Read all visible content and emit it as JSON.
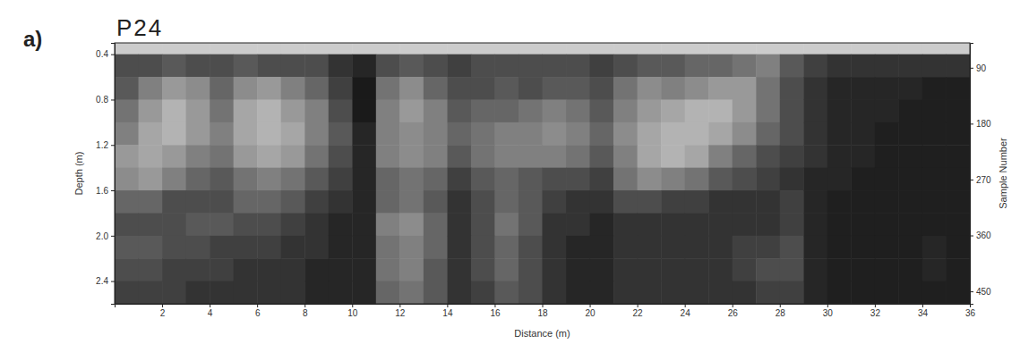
{
  "chart_data": {
    "type": "heatmap",
    "panel_label": "a)",
    "title": "P24",
    "x_label": "Distance (m)",
    "y_label": "Depth (m)",
    "y2_label": "Sample Number",
    "xlim": [
      0,
      36
    ],
    "xticks": [
      2,
      4,
      6,
      8,
      10,
      12,
      14,
      16,
      18,
      20,
      22,
      24,
      26,
      28,
      30,
      32,
      34,
      36
    ],
    "ylim": [
      0.3,
      2.6
    ],
    "yticks": [
      0.4,
      0.8,
      1.2,
      1.6,
      {
        "value": 2.0,
        "label": "2.0"
      },
      2.4
    ],
    "y2lim": [
      50,
      470
    ],
    "y2ticks": [
      90,
      180,
      270,
      360,
      450
    ],
    "x_edges": [
      0,
      1,
      2,
      3,
      4,
      5,
      6,
      7,
      8,
      9,
      10,
      11,
      12,
      13,
      14,
      15,
      16,
      17,
      18,
      19,
      20,
      21,
      22,
      23,
      24,
      25,
      26,
      27,
      28,
      29,
      30,
      31,
      32,
      33,
      34,
      35,
      36
    ],
    "y_edges": [
      0.3,
      0.4,
      0.6,
      0.8,
      1.0,
      1.2,
      1.4,
      1.6,
      1.8,
      2.0,
      2.2,
      2.4,
      2.6
    ],
    "cells": [
      [
        0.8,
        0.8,
        0.8,
        0.8,
        0.8,
        0.8,
        0.8,
        0.8,
        0.8,
        0.8,
        0.8,
        0.8,
        0.8,
        0.8,
        0.8,
        0.8,
        0.8,
        0.8,
        0.8,
        0.8,
        0.8,
        0.8,
        0.8,
        0.8,
        0.8,
        0.8,
        0.8,
        0.8,
        0.8,
        0.8,
        0.8,
        0.8,
        0.8,
        0.8,
        0.8,
        0.8
      ],
      [
        0.3,
        0.3,
        0.35,
        0.3,
        0.3,
        0.35,
        0.3,
        0.3,
        0.3,
        0.2,
        0.15,
        0.3,
        0.35,
        0.3,
        0.25,
        0.3,
        0.3,
        0.3,
        0.3,
        0.3,
        0.25,
        0.3,
        0.35,
        0.35,
        0.4,
        0.4,
        0.45,
        0.5,
        0.35,
        0.25,
        0.2,
        0.2,
        0.2,
        0.2,
        0.2,
        0.2
      ],
      [
        0.35,
        0.5,
        0.6,
        0.55,
        0.4,
        0.55,
        0.6,
        0.5,
        0.4,
        0.25,
        0.1,
        0.45,
        0.55,
        0.4,
        0.3,
        0.3,
        0.35,
        0.3,
        0.35,
        0.35,
        0.3,
        0.45,
        0.55,
        0.5,
        0.55,
        0.6,
        0.6,
        0.45,
        0.3,
        0.2,
        0.15,
        0.15,
        0.15,
        0.15,
        0.12,
        0.12
      ],
      [
        0.45,
        0.6,
        0.7,
        0.6,
        0.45,
        0.65,
        0.7,
        0.6,
        0.5,
        0.3,
        0.1,
        0.5,
        0.6,
        0.5,
        0.35,
        0.4,
        0.4,
        0.45,
        0.5,
        0.45,
        0.35,
        0.5,
        0.6,
        0.65,
        0.7,
        0.7,
        0.6,
        0.45,
        0.3,
        0.2,
        0.15,
        0.15,
        0.15,
        0.12,
        0.12,
        0.12
      ],
      [
        0.5,
        0.65,
        0.7,
        0.6,
        0.5,
        0.65,
        0.7,
        0.65,
        0.5,
        0.35,
        0.15,
        0.5,
        0.55,
        0.5,
        0.4,
        0.45,
        0.5,
        0.5,
        0.55,
        0.5,
        0.4,
        0.55,
        0.65,
        0.7,
        0.7,
        0.65,
        0.55,
        0.4,
        0.3,
        0.2,
        0.15,
        0.15,
        0.12,
        0.12,
        0.12,
        0.12
      ],
      [
        0.6,
        0.65,
        0.6,
        0.5,
        0.45,
        0.6,
        0.65,
        0.6,
        0.45,
        0.3,
        0.15,
        0.5,
        0.55,
        0.5,
        0.35,
        0.45,
        0.5,
        0.5,
        0.5,
        0.45,
        0.35,
        0.5,
        0.65,
        0.7,
        0.65,
        0.5,
        0.4,
        0.3,
        0.25,
        0.2,
        0.15,
        0.15,
        0.12,
        0.12,
        0.12,
        0.12
      ],
      [
        0.55,
        0.6,
        0.5,
        0.4,
        0.35,
        0.45,
        0.5,
        0.45,
        0.35,
        0.25,
        0.15,
        0.4,
        0.45,
        0.4,
        0.25,
        0.35,
        0.4,
        0.35,
        0.3,
        0.3,
        0.25,
        0.45,
        0.55,
        0.5,
        0.45,
        0.35,
        0.3,
        0.25,
        0.2,
        0.15,
        0.15,
        0.12,
        0.12,
        0.12,
        0.12,
        0.12
      ],
      [
        0.4,
        0.4,
        0.3,
        0.3,
        0.3,
        0.4,
        0.4,
        0.35,
        0.25,
        0.2,
        0.15,
        0.4,
        0.45,
        0.35,
        0.2,
        0.3,
        0.4,
        0.35,
        0.25,
        0.2,
        0.2,
        0.3,
        0.3,
        0.25,
        0.25,
        0.2,
        0.2,
        0.2,
        0.25,
        0.15,
        0.12,
        0.12,
        0.12,
        0.12,
        0.12,
        0.12
      ],
      [
        0.3,
        0.3,
        0.3,
        0.35,
        0.35,
        0.3,
        0.3,
        0.25,
        0.2,
        0.15,
        0.15,
        0.5,
        0.55,
        0.4,
        0.2,
        0.3,
        0.45,
        0.35,
        0.2,
        0.2,
        0.15,
        0.2,
        0.2,
        0.2,
        0.2,
        0.2,
        0.2,
        0.2,
        0.25,
        0.15,
        0.12,
        0.12,
        0.12,
        0.12,
        0.12,
        0.12
      ],
      [
        0.35,
        0.35,
        0.3,
        0.3,
        0.25,
        0.25,
        0.25,
        0.2,
        0.2,
        0.15,
        0.15,
        0.45,
        0.5,
        0.4,
        0.2,
        0.3,
        0.4,
        0.3,
        0.2,
        0.15,
        0.15,
        0.2,
        0.2,
        0.2,
        0.2,
        0.2,
        0.25,
        0.25,
        0.3,
        0.15,
        0.12,
        0.12,
        0.12,
        0.12,
        0.15,
        0.12
      ],
      [
        0.3,
        0.3,
        0.25,
        0.25,
        0.25,
        0.2,
        0.2,
        0.2,
        0.15,
        0.15,
        0.15,
        0.45,
        0.5,
        0.35,
        0.2,
        0.3,
        0.4,
        0.3,
        0.2,
        0.15,
        0.15,
        0.2,
        0.2,
        0.2,
        0.2,
        0.2,
        0.25,
        0.3,
        0.3,
        0.15,
        0.12,
        0.12,
        0.12,
        0.12,
        0.15,
        0.12
      ],
      [
        0.25,
        0.25,
        0.25,
        0.2,
        0.2,
        0.2,
        0.2,
        0.2,
        0.15,
        0.15,
        0.15,
        0.4,
        0.45,
        0.35,
        0.2,
        0.25,
        0.35,
        0.3,
        0.2,
        0.15,
        0.15,
        0.2,
        0.2,
        0.2,
        0.2,
        0.2,
        0.2,
        0.25,
        0.25,
        0.15,
        0.12,
        0.12,
        0.12,
        0.12,
        0.12,
        0.12
      ]
    ]
  }
}
